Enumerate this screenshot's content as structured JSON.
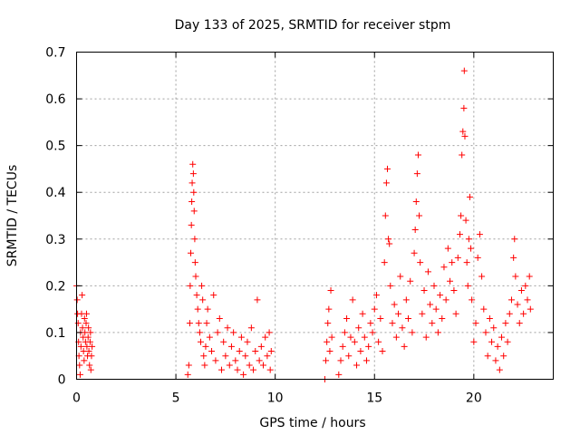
{
  "chart_data": {
    "type": "scatter",
    "title": "Day 133 of 2025, SRMTID for receiver stpm",
    "xlabel": "GPS time / hours",
    "ylabel": "SRMTID / TECUs",
    "xlim": [
      0,
      24
    ],
    "ylim": [
      0,
      0.7
    ],
    "xticks": [
      0,
      5,
      10,
      15,
      20
    ],
    "xtick_labels": [
      "0",
      "5",
      "10",
      "15",
      "20"
    ],
    "yticks": [
      0,
      0.1,
      0.2,
      0.3,
      0.4,
      0.5,
      0.6,
      0.7
    ],
    "ytick_labels": [
      "0",
      "0.1",
      "0.2",
      "0.3",
      "0.4",
      "0.5",
      "0.6",
      "0.7"
    ],
    "grid": true,
    "marker": "+",
    "color": "#ff0000",
    "series": [
      {
        "name": "SRMTID",
        "points": [
          [
            0.0,
            0.2
          ],
          [
            0.03,
            0.17
          ],
          [
            0.05,
            0.14
          ],
          [
            0.08,
            0.12
          ],
          [
            0.1,
            0.08
          ],
          [
            0.12,
            0.05
          ],
          [
            0.15,
            0.03
          ],
          [
            0.18,
            0.01
          ],
          [
            0.2,
            0.1
          ],
          [
            0.22,
            0.07
          ],
          [
            0.25,
            0.14
          ],
          [
            0.28,
            0.18
          ],
          [
            0.3,
            0.11
          ],
          [
            0.33,
            0.09
          ],
          [
            0.35,
            0.06
          ],
          [
            0.38,
            0.04
          ],
          [
            0.4,
            0.13
          ],
          [
            0.42,
            0.1
          ],
          [
            0.45,
            0.08
          ],
          [
            0.48,
            0.12
          ],
          [
            0.5,
            0.14
          ],
          [
            0.52,
            0.07
          ],
          [
            0.55,
            0.05
          ],
          [
            0.58,
            0.09
          ],
          [
            0.6,
            0.11
          ],
          [
            0.62,
            0.06
          ],
          [
            0.65,
            0.03
          ],
          [
            0.68,
            0.08
          ],
          [
            0.7,
            0.1
          ],
          [
            0.72,
            0.02
          ],
          [
            0.75,
            0.05
          ],
          [
            0.78,
            0.07
          ],
          [
            5.6,
            0.01
          ],
          [
            5.65,
            0.03
          ],
          [
            5.7,
            0.12
          ],
          [
            5.72,
            0.2
          ],
          [
            5.75,
            0.27
          ],
          [
            5.78,
            0.33
          ],
          [
            5.8,
            0.38
          ],
          [
            5.82,
            0.42
          ],
          [
            5.85,
            0.46
          ],
          [
            5.88,
            0.44
          ],
          [
            5.9,
            0.4
          ],
          [
            5.92,
            0.36
          ],
          [
            5.95,
            0.3
          ],
          [
            5.97,
            0.25
          ],
          [
            6.0,
            0.22
          ],
          [
            6.05,
            0.18
          ],
          [
            6.1,
            0.15
          ],
          [
            6.15,
            0.12
          ],
          [
            6.2,
            0.1
          ],
          [
            6.25,
            0.08
          ],
          [
            6.3,
            0.2
          ],
          [
            6.35,
            0.17
          ],
          [
            6.4,
            0.05
          ],
          [
            6.45,
            0.03
          ],
          [
            6.5,
            0.07
          ],
          [
            6.55,
            0.12
          ],
          [
            6.6,
            0.15
          ],
          [
            6.7,
            0.09
          ],
          [
            6.8,
            0.06
          ],
          [
            6.9,
            0.18
          ],
          [
            7.0,
            0.04
          ],
          [
            7.1,
            0.1
          ],
          [
            7.2,
            0.13
          ],
          [
            7.3,
            0.02
          ],
          [
            7.4,
            0.08
          ],
          [
            7.5,
            0.05
          ],
          [
            7.6,
            0.11
          ],
          [
            7.7,
            0.03
          ],
          [
            7.8,
            0.07
          ],
          [
            7.9,
            0.1
          ],
          [
            8.0,
            0.04
          ],
          [
            8.1,
            0.02
          ],
          [
            8.2,
            0.06
          ],
          [
            8.3,
            0.09
          ],
          [
            8.4,
            0.01
          ],
          [
            8.5,
            0.05
          ],
          [
            8.6,
            0.08
          ],
          [
            8.7,
            0.03
          ],
          [
            8.8,
            0.11
          ],
          [
            8.9,
            0.02
          ],
          [
            9.0,
            0.06
          ],
          [
            9.1,
            0.17
          ],
          [
            9.2,
            0.04
          ],
          [
            9.3,
            0.07
          ],
          [
            9.4,
            0.03
          ],
          [
            9.5,
            0.09
          ],
          [
            9.6,
            0.05
          ],
          [
            9.7,
            0.1
          ],
          [
            9.75,
            0.02
          ],
          [
            9.8,
            0.06
          ],
          [
            12.5,
            0.0
          ],
          [
            12.55,
            0.04
          ],
          [
            12.6,
            0.08
          ],
          [
            12.65,
            0.12
          ],
          [
            12.7,
            0.15
          ],
          [
            12.75,
            0.06
          ],
          [
            12.8,
            0.19
          ],
          [
            12.85,
            0.09
          ],
          [
            13.2,
            0.01
          ],
          [
            13.3,
            0.04
          ],
          [
            13.4,
            0.07
          ],
          [
            13.5,
            0.1
          ],
          [
            13.6,
            0.13
          ],
          [
            13.7,
            0.05
          ],
          [
            13.8,
            0.09
          ],
          [
            13.9,
            0.17
          ],
          [
            14.0,
            0.08
          ],
          [
            14.1,
            0.03
          ],
          [
            14.2,
            0.11
          ],
          [
            14.3,
            0.06
          ],
          [
            14.4,
            0.14
          ],
          [
            14.5,
            0.09
          ],
          [
            14.6,
            0.04
          ],
          [
            14.7,
            0.07
          ],
          [
            14.8,
            0.12
          ],
          [
            14.9,
            0.1
          ],
          [
            15.0,
            0.15
          ],
          [
            15.1,
            0.18
          ],
          [
            15.2,
            0.08
          ],
          [
            15.3,
            0.13
          ],
          [
            15.4,
            0.06
          ],
          [
            15.5,
            0.25
          ],
          [
            15.55,
            0.35
          ],
          [
            15.6,
            0.42
          ],
          [
            15.65,
            0.45
          ],
          [
            15.7,
            0.3
          ],
          [
            15.75,
            0.29
          ],
          [
            15.8,
            0.2
          ],
          [
            15.9,
            0.12
          ],
          [
            16.0,
            0.16
          ],
          [
            16.1,
            0.09
          ],
          [
            16.2,
            0.14
          ],
          [
            16.3,
            0.22
          ],
          [
            16.4,
            0.11
          ],
          [
            16.5,
            0.07
          ],
          [
            16.6,
            0.17
          ],
          [
            16.7,
            0.13
          ],
          [
            16.8,
            0.21
          ],
          [
            16.9,
            0.1
          ],
          [
            17.0,
            0.27
          ],
          [
            17.05,
            0.32
          ],
          [
            17.1,
            0.38
          ],
          [
            17.15,
            0.44
          ],
          [
            17.2,
            0.48
          ],
          [
            17.25,
            0.35
          ],
          [
            17.3,
            0.25
          ],
          [
            17.4,
            0.14
          ],
          [
            17.5,
            0.19
          ],
          [
            17.6,
            0.09
          ],
          [
            17.7,
            0.23
          ],
          [
            17.8,
            0.16
          ],
          [
            17.9,
            0.12
          ],
          [
            18.0,
            0.2
          ],
          [
            18.1,
            0.15
          ],
          [
            18.2,
            0.1
          ],
          [
            18.3,
            0.18
          ],
          [
            18.4,
            0.13
          ],
          [
            18.5,
            0.24
          ],
          [
            18.6,
            0.17
          ],
          [
            18.7,
            0.28
          ],
          [
            18.8,
            0.21
          ],
          [
            18.9,
            0.25
          ],
          [
            19.0,
            0.19
          ],
          [
            19.1,
            0.14
          ],
          [
            19.2,
            0.26
          ],
          [
            19.3,
            0.31
          ],
          [
            19.35,
            0.35
          ],
          [
            19.4,
            0.48
          ],
          [
            19.45,
            0.53
          ],
          [
            19.5,
            0.58
          ],
          [
            19.52,
            0.66
          ],
          [
            19.55,
            0.52
          ],
          [
            19.6,
            0.34
          ],
          [
            19.65,
            0.25
          ],
          [
            19.7,
            0.2
          ],
          [
            19.75,
            0.3
          ],
          [
            19.8,
            0.39
          ],
          [
            19.85,
            0.28
          ],
          [
            19.9,
            0.17
          ],
          [
            20.0,
            0.08
          ],
          [
            20.1,
            0.12
          ],
          [
            20.2,
            0.26
          ],
          [
            20.3,
            0.31
          ],
          [
            20.4,
            0.22
          ],
          [
            20.5,
            0.15
          ],
          [
            20.6,
            0.1
          ],
          [
            20.7,
            0.05
          ],
          [
            20.8,
            0.13
          ],
          [
            20.9,
            0.08
          ],
          [
            21.0,
            0.11
          ],
          [
            21.1,
            0.04
          ],
          [
            21.2,
            0.07
          ],
          [
            21.3,
            0.02
          ],
          [
            21.4,
            0.09
          ],
          [
            21.5,
            0.05
          ],
          [
            21.6,
            0.12
          ],
          [
            21.7,
            0.08
          ],
          [
            21.8,
            0.14
          ],
          [
            21.9,
            0.17
          ],
          [
            22.0,
            0.26
          ],
          [
            22.05,
            0.3
          ],
          [
            22.1,
            0.22
          ],
          [
            22.2,
            0.16
          ],
          [
            22.3,
            0.12
          ],
          [
            22.4,
            0.19
          ],
          [
            22.5,
            0.14
          ],
          [
            22.6,
            0.2
          ],
          [
            22.7,
            0.17
          ],
          [
            22.8,
            0.22
          ],
          [
            22.85,
            0.15
          ]
        ]
      }
    ]
  }
}
